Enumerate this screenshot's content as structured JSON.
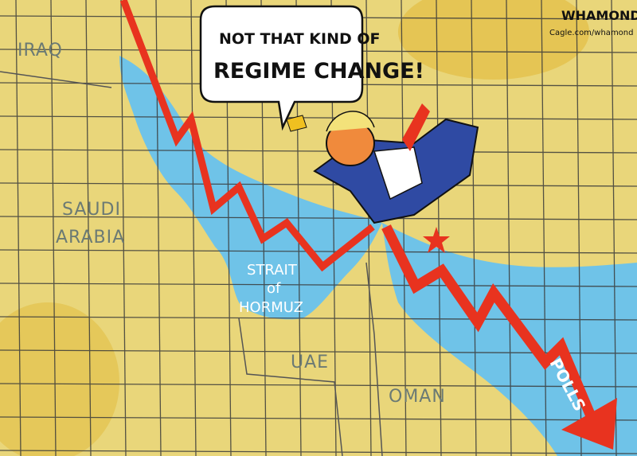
{
  "speech_bubble": {
    "line1": "NOT THAT KIND OF",
    "line2": "REGIME CHANGE!"
  },
  "map_labels": {
    "iraq": "IRAQ",
    "saudi_arabia_1": "SAUDI",
    "saudi_arabia_2": "ARABIA",
    "strait_1": "STRAIT",
    "strait_2": "of",
    "strait_3": "HORMUZ",
    "uae": "UAE",
    "oman": "OMAN"
  },
  "arrow_label": "POLLS",
  "signature": {
    "name": "WHAMOND",
    "site": "Cagle.com/whamond"
  },
  "colors": {
    "land": "#e9d67a",
    "water": "#6fc3e8",
    "arrow": "#e8331f",
    "grid": "#3a3a3a"
  }
}
